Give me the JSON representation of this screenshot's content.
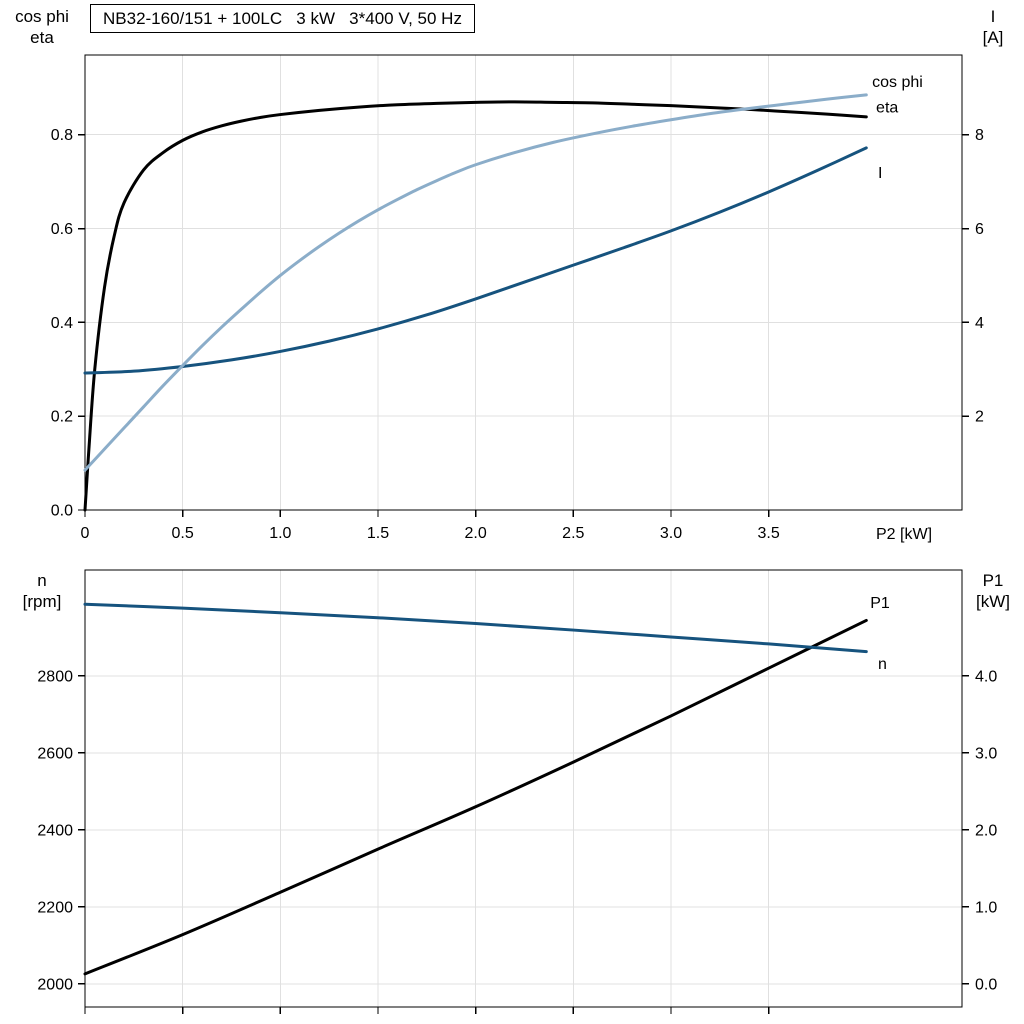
{
  "title": {
    "text": "NB32-160/151 + 100LC   3 kW   3*400 V, 50 Hz"
  },
  "colors": {
    "black": "#000000",
    "dark_blue": "#16537e",
    "light_blue": "#8badc9",
    "grid": "#e0e0e0",
    "frame": "#000000",
    "text": "#000000",
    "background": "#ffffff"
  },
  "chart_data": [
    {
      "type": "line",
      "title": "NB32-160/151 + 100LC   3 kW   3*400 V, 50 Hz",
      "x_axis": {
        "label": "P2 [kW]",
        "min": 0,
        "max": 4.49,
        "ticks": [
          {
            "v": 0,
            "label": "0"
          },
          {
            "v": 0.5,
            "label": "0.5"
          },
          {
            "v": 1.0,
            "label": "1.0"
          },
          {
            "v": 1.5,
            "label": "1.5"
          },
          {
            "v": 2.0,
            "label": "2.0"
          },
          {
            "v": 2.5,
            "label": "2.5"
          },
          {
            "v": 3.0,
            "label": "3.0"
          },
          {
            "v": 3.5,
            "label": "3.5"
          }
        ]
      },
      "left_axis": {
        "name_lines": [
          "cos phi",
          "eta"
        ],
        "min": 0,
        "max": 0.97,
        "ticks": [
          {
            "v": 0.0,
            "label": "0.0"
          },
          {
            "v": 0.2,
            "label": "0.2"
          },
          {
            "v": 0.4,
            "label": "0.4"
          },
          {
            "v": 0.6,
            "label": "0.6"
          },
          {
            "v": 0.8,
            "label": "0.8"
          }
        ]
      },
      "right_axis": {
        "name_lines": [
          "I",
          "[A]"
        ],
        "min": 0,
        "max": 9.7,
        "ticks": [
          {
            "v": 2,
            "label": "2"
          },
          {
            "v": 4,
            "label": "4"
          },
          {
            "v": 6,
            "label": "6"
          },
          {
            "v": 8,
            "label": "8"
          }
        ]
      },
      "series": [
        {
          "name": "eta",
          "label": "eta",
          "color": "black",
          "axis": "left",
          "label_anchor": [
            4.05,
            0.859
          ],
          "points": [
            [
              0,
              0
            ],
            [
              0.02,
              0.13
            ],
            [
              0.05,
              0.3
            ],
            [
              0.1,
              0.475
            ],
            [
              0.15,
              0.585
            ],
            [
              0.2,
              0.655
            ],
            [
              0.3,
              0.725
            ],
            [
              0.4,
              0.762
            ],
            [
              0.5,
              0.788
            ],
            [
              0.6,
              0.806
            ],
            [
              0.7,
              0.819
            ],
            [
              0.8,
              0.829
            ],
            [
              0.9,
              0.837
            ],
            [
              1.0,
              0.843
            ],
            [
              1.2,
              0.852
            ],
            [
              1.4,
              0.859
            ],
            [
              1.6,
              0.864
            ],
            [
              1.8,
              0.867
            ],
            [
              2.0,
              0.869
            ],
            [
              2.2,
              0.87
            ],
            [
              2.4,
              0.869
            ],
            [
              2.6,
              0.868
            ],
            [
              2.8,
              0.865
            ],
            [
              3.0,
              0.862
            ],
            [
              3.2,
              0.858
            ],
            [
              3.4,
              0.854
            ],
            [
              3.6,
              0.849
            ],
            [
              3.8,
              0.844
            ],
            [
              4.0,
              0.838
            ]
          ]
        },
        {
          "name": "I",
          "label": "I",
          "color": "dark_blue",
          "axis": "right",
          "label_anchor": [
            4.06,
            7.2
          ],
          "points": [
            [
              0,
              2.92
            ],
            [
              0.25,
              2.96
            ],
            [
              0.5,
              3.06
            ],
            [
              0.75,
              3.2
            ],
            [
              1.0,
              3.38
            ],
            [
              1.25,
              3.6
            ],
            [
              1.5,
              3.86
            ],
            [
              1.75,
              4.16
            ],
            [
              2.0,
              4.5
            ],
            [
              2.25,
              4.86
            ],
            [
              2.5,
              5.22
            ],
            [
              2.75,
              5.58
            ],
            [
              3.0,
              5.95
            ],
            [
              3.25,
              6.35
            ],
            [
              3.5,
              6.78
            ],
            [
              3.75,
              7.24
            ],
            [
              4.0,
              7.72
            ]
          ]
        },
        {
          "name": "cos phi",
          "label": "cos phi",
          "color": "light_blue",
          "axis": "left",
          "label_anchor": [
            4.03,
            0.914
          ],
          "points": [
            [
              0,
              0.085
            ],
            [
              0.1,
              0.13
            ],
            [
              0.2,
              0.175
            ],
            [
              0.3,
              0.22
            ],
            [
              0.4,
              0.265
            ],
            [
              0.5,
              0.308
            ],
            [
              0.6,
              0.35
            ],
            [
              0.7,
              0.39
            ],
            [
              0.8,
              0.428
            ],
            [
              0.9,
              0.465
            ],
            [
              1.0,
              0.5
            ],
            [
              1.1,
              0.532
            ],
            [
              1.2,
              0.562
            ],
            [
              1.3,
              0.59
            ],
            [
              1.4,
              0.616
            ],
            [
              1.5,
              0.64
            ],
            [
              1.6,
              0.662
            ],
            [
              1.7,
              0.683
            ],
            [
              1.8,
              0.702
            ],
            [
              1.9,
              0.72
            ],
            [
              2.0,
              0.736
            ],
            [
              2.2,
              0.762
            ],
            [
              2.4,
              0.784
            ],
            [
              2.6,
              0.802
            ],
            [
              2.8,
              0.818
            ],
            [
              3.0,
              0.832
            ],
            [
              3.2,
              0.845
            ],
            [
              3.4,
              0.856
            ],
            [
              3.6,
              0.866
            ],
            [
              3.8,
              0.876
            ],
            [
              4.0,
              0.885
            ]
          ]
        }
      ]
    },
    {
      "type": "line",
      "x_axis": {
        "label": "",
        "min": 0,
        "max": 4.49,
        "ticks": [
          {
            "v": 0
          },
          {
            "v": 0.5
          },
          {
            "v": 1.0
          },
          {
            "v": 1.5
          },
          {
            "v": 2.0
          },
          {
            "v": 2.5
          },
          {
            "v": 3.0
          },
          {
            "v": 3.5
          }
        ]
      },
      "left_axis": {
        "name_lines": [
          "n",
          "[rpm]"
        ],
        "min": 1940,
        "max": 3075,
        "ticks": [
          {
            "v": 2000,
            "label": "2000"
          },
          {
            "v": 2200,
            "label": "2200"
          },
          {
            "v": 2400,
            "label": "2400"
          },
          {
            "v": 2600,
            "label": "2600"
          },
          {
            "v": 2800,
            "label": "2800"
          }
        ]
      },
      "right_axis": {
        "name_lines": [
          "P1",
          "[kW]"
        ],
        "min": -0.3,
        "max": 5.375,
        "ticks": [
          {
            "v": 0,
            "label": "0.0"
          },
          {
            "v": 1,
            "label": "1.0"
          },
          {
            "v": 2,
            "label": "2.0"
          },
          {
            "v": 3,
            "label": "3.0"
          },
          {
            "v": 4,
            "label": "4.0"
          }
        ]
      },
      "series": [
        {
          "name": "P1",
          "label": "P1",
          "color": "black",
          "axis": "right",
          "label_anchor": [
            4.02,
            4.95
          ],
          "points": [
            [
              0,
              0.13
            ],
            [
              0.5,
              0.64
            ],
            [
              1.0,
              1.19
            ],
            [
              1.5,
              1.75
            ],
            [
              2.0,
              2.3
            ],
            [
              2.5,
              2.88
            ],
            [
              3.0,
              3.48
            ],
            [
              3.5,
              4.1
            ],
            [
              4.0,
              4.72
            ]
          ]
        },
        {
          "name": "n",
          "label": "n",
          "color": "dark_blue",
          "axis": "left",
          "label_anchor": [
            4.06,
            2832
          ],
          "points": [
            [
              0,
              2986
            ],
            [
              0.5,
              2976
            ],
            [
              1.0,
              2964
            ],
            [
              1.5,
              2951
            ],
            [
              2.0,
              2936
            ],
            [
              2.5,
              2919
            ],
            [
              3.0,
              2901
            ],
            [
              3.5,
              2883
            ],
            [
              4.0,
              2863
            ]
          ]
        }
      ]
    }
  ]
}
